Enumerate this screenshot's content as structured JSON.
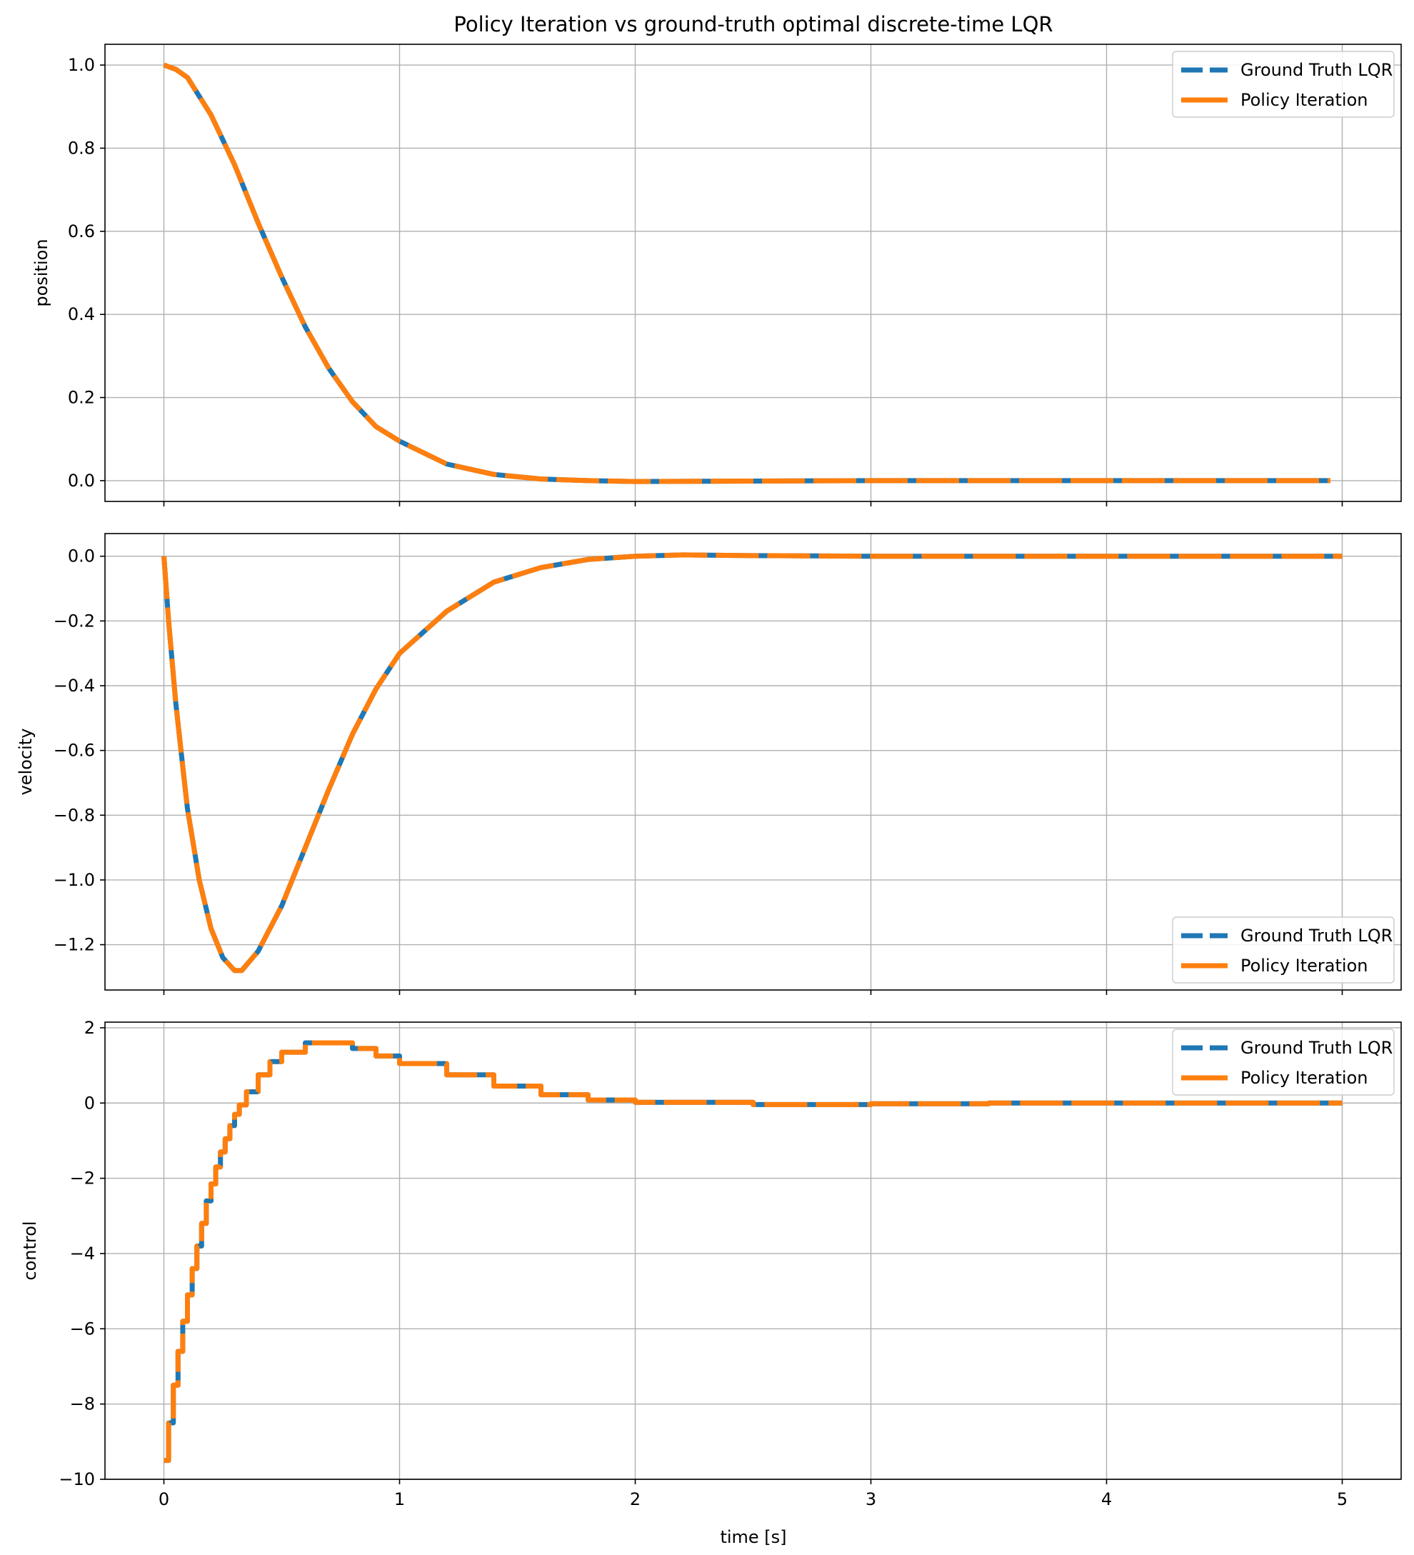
{
  "title": "Policy Iteration vs ground-truth optimal discrete-time LQR",
  "xlabel": "time [s]",
  "colors": {
    "ground_truth": "#1f77b4",
    "policy_iteration": "#ff7f0e",
    "grid": "#b0b0b0",
    "axes": "#000000"
  },
  "legend": {
    "ground_truth": "Ground Truth LQR",
    "policy_iteration": "Policy Iteration"
  },
  "chart_data": [
    {
      "type": "line",
      "ylabel": "position",
      "xlim": [
        -0.25,
        5.25
      ],
      "ylim": [
        -0.05,
        1.05
      ],
      "xticks": [
        0,
        1,
        2,
        3,
        4,
        5
      ],
      "yticks": [
        0.0,
        0.2,
        0.4,
        0.6,
        0.8,
        1.0
      ],
      "ytick_labels": [
        "0.0",
        "0.2",
        "0.4",
        "0.6",
        "0.8",
        "1.0"
      ],
      "grid": true,
      "legend_loc": "upper right",
      "series": [
        {
          "name": "Ground Truth LQR",
          "style": "dashed",
          "x": [
            0,
            0.05,
            0.1,
            0.2,
            0.3,
            0.4,
            0.5,
            0.6,
            0.7,
            0.8,
            0.9,
            1.0,
            1.2,
            1.4,
            1.6,
            1.8,
            2.0,
            2.5,
            3.0,
            3.5,
            4.0,
            4.5,
            4.95
          ],
          "y": [
            1.0,
            0.99,
            0.97,
            0.88,
            0.76,
            0.62,
            0.49,
            0.37,
            0.27,
            0.19,
            0.13,
            0.095,
            0.04,
            0.015,
            0.004,
            0.0,
            -0.002,
            -0.001,
            0.0,
            0.0,
            0.0,
            0.0,
            0.0
          ]
        },
        {
          "name": "Policy Iteration",
          "style": "solid",
          "x": [
            0,
            0.05,
            0.1,
            0.2,
            0.3,
            0.4,
            0.5,
            0.6,
            0.7,
            0.8,
            0.9,
            1.0,
            1.2,
            1.4,
            1.6,
            1.8,
            2.0,
            2.5,
            3.0,
            3.5,
            4.0,
            4.5,
            4.95
          ],
          "y": [
            1.0,
            0.99,
            0.97,
            0.88,
            0.76,
            0.62,
            0.49,
            0.37,
            0.27,
            0.19,
            0.13,
            0.095,
            0.04,
            0.015,
            0.004,
            0.0,
            -0.002,
            -0.001,
            0.0,
            0.0,
            0.0,
            0.0,
            0.0
          ]
        }
      ]
    },
    {
      "type": "line",
      "ylabel": "velocity",
      "xlim": [
        -0.25,
        5.25
      ],
      "ylim": [
        -1.34,
        0.07
      ],
      "xticks": [
        0,
        1,
        2,
        3,
        4,
        5
      ],
      "yticks": [
        -1.2,
        -1.0,
        -0.8,
        -0.6,
        -0.4,
        -0.2,
        0.0
      ],
      "ytick_labels": [
        "−1.2",
        "−1.0",
        "−0.8",
        "−0.6",
        "−0.4",
        "−0.2",
        "0.0"
      ],
      "grid": true,
      "legend_loc": "lower right",
      "series": [
        {
          "name": "Ground Truth LQR",
          "style": "dashed",
          "x": [
            0,
            0.02,
            0.05,
            0.08,
            0.1,
            0.15,
            0.2,
            0.25,
            0.3,
            0.33,
            0.4,
            0.5,
            0.6,
            0.7,
            0.8,
            0.9,
            1.0,
            1.2,
            1.4,
            1.6,
            1.8,
            2.0,
            2.2,
            2.5,
            3.0,
            3.5,
            4.0,
            4.5,
            5.0
          ],
          "y": [
            0.0,
            -0.2,
            -0.45,
            -0.65,
            -0.78,
            -1.0,
            -1.15,
            -1.24,
            -1.28,
            -1.28,
            -1.22,
            -1.08,
            -0.9,
            -0.72,
            -0.55,
            -0.41,
            -0.3,
            -0.17,
            -0.08,
            -0.035,
            -0.01,
            0.0,
            0.004,
            0.002,
            0.0,
            0.0,
            0.0,
            0.0,
            0.0
          ]
        },
        {
          "name": "Policy Iteration",
          "style": "solid",
          "x": [
            0,
            0.02,
            0.05,
            0.08,
            0.1,
            0.15,
            0.2,
            0.25,
            0.3,
            0.33,
            0.4,
            0.5,
            0.6,
            0.7,
            0.8,
            0.9,
            1.0,
            1.2,
            1.4,
            1.6,
            1.8,
            2.0,
            2.2,
            2.5,
            3.0,
            3.5,
            4.0,
            4.5,
            5.0
          ],
          "y": [
            0.0,
            -0.2,
            -0.45,
            -0.65,
            -0.78,
            -1.0,
            -1.15,
            -1.24,
            -1.28,
            -1.28,
            -1.22,
            -1.08,
            -0.9,
            -0.72,
            -0.55,
            -0.41,
            -0.3,
            -0.17,
            -0.08,
            -0.035,
            -0.01,
            0.0,
            0.004,
            0.002,
            0.0,
            0.0,
            0.0,
            0.0,
            0.0
          ]
        }
      ]
    },
    {
      "type": "line",
      "ylabel": "control",
      "xlim": [
        -0.25,
        5.25
      ],
      "ylim": [
        -10.0,
        2.15
      ],
      "xticks": [
        0,
        1,
        2,
        3,
        4,
        5
      ],
      "xtick_labels": [
        "0",
        "1",
        "2",
        "3",
        "4",
        "5"
      ],
      "yticks": [
        -10,
        -8,
        -6,
        -4,
        -2,
        0,
        2
      ],
      "ytick_labels": [
        "−10",
        "−8",
        "−6",
        "−4",
        "−2",
        "0",
        "2"
      ],
      "grid": true,
      "legend_loc": "upper right",
      "series": [
        {
          "name": "Ground Truth LQR",
          "style": "dashed",
          "step": true,
          "x": [
            0,
            0.02,
            0.04,
            0.06,
            0.08,
            0.1,
            0.12,
            0.14,
            0.16,
            0.18,
            0.2,
            0.22,
            0.24,
            0.26,
            0.28,
            0.3,
            0.32,
            0.35,
            0.4,
            0.45,
            0.5,
            0.6,
            0.7,
            0.8,
            0.9,
            1.0,
            1.2,
            1.4,
            1.6,
            1.8,
            2.0,
            2.5,
            3.0,
            3.5,
            4.0,
            4.5,
            5.0
          ],
          "y": [
            -9.5,
            -8.5,
            -7.5,
            -6.6,
            -5.8,
            -5.1,
            -4.4,
            -3.8,
            -3.2,
            -2.6,
            -2.15,
            -1.7,
            -1.3,
            -0.95,
            -0.6,
            -0.3,
            -0.05,
            0.3,
            0.75,
            1.1,
            1.35,
            1.6,
            1.6,
            1.45,
            1.25,
            1.05,
            0.75,
            0.45,
            0.22,
            0.08,
            0.02,
            -0.04,
            -0.02,
            0.0,
            0.0,
            0.0,
            0.0
          ]
        },
        {
          "name": "Policy Iteration",
          "style": "solid",
          "step": true,
          "x": [
            0,
            0.02,
            0.04,
            0.06,
            0.08,
            0.1,
            0.12,
            0.14,
            0.16,
            0.18,
            0.2,
            0.22,
            0.24,
            0.26,
            0.28,
            0.3,
            0.32,
            0.35,
            0.4,
            0.45,
            0.5,
            0.6,
            0.7,
            0.8,
            0.9,
            1.0,
            1.2,
            1.4,
            1.6,
            1.8,
            2.0,
            2.5,
            3.0,
            3.5,
            4.0,
            4.5,
            5.0
          ],
          "y": [
            -9.5,
            -8.5,
            -7.5,
            -6.6,
            -5.8,
            -5.1,
            -4.4,
            -3.8,
            -3.2,
            -2.6,
            -2.15,
            -1.7,
            -1.3,
            -0.95,
            -0.6,
            -0.3,
            -0.05,
            0.3,
            0.75,
            1.1,
            1.35,
            1.6,
            1.6,
            1.45,
            1.25,
            1.05,
            0.75,
            0.45,
            0.22,
            0.08,
            0.02,
            -0.04,
            -0.02,
            0.0,
            0.0,
            0.0,
            0.0
          ]
        }
      ]
    }
  ]
}
